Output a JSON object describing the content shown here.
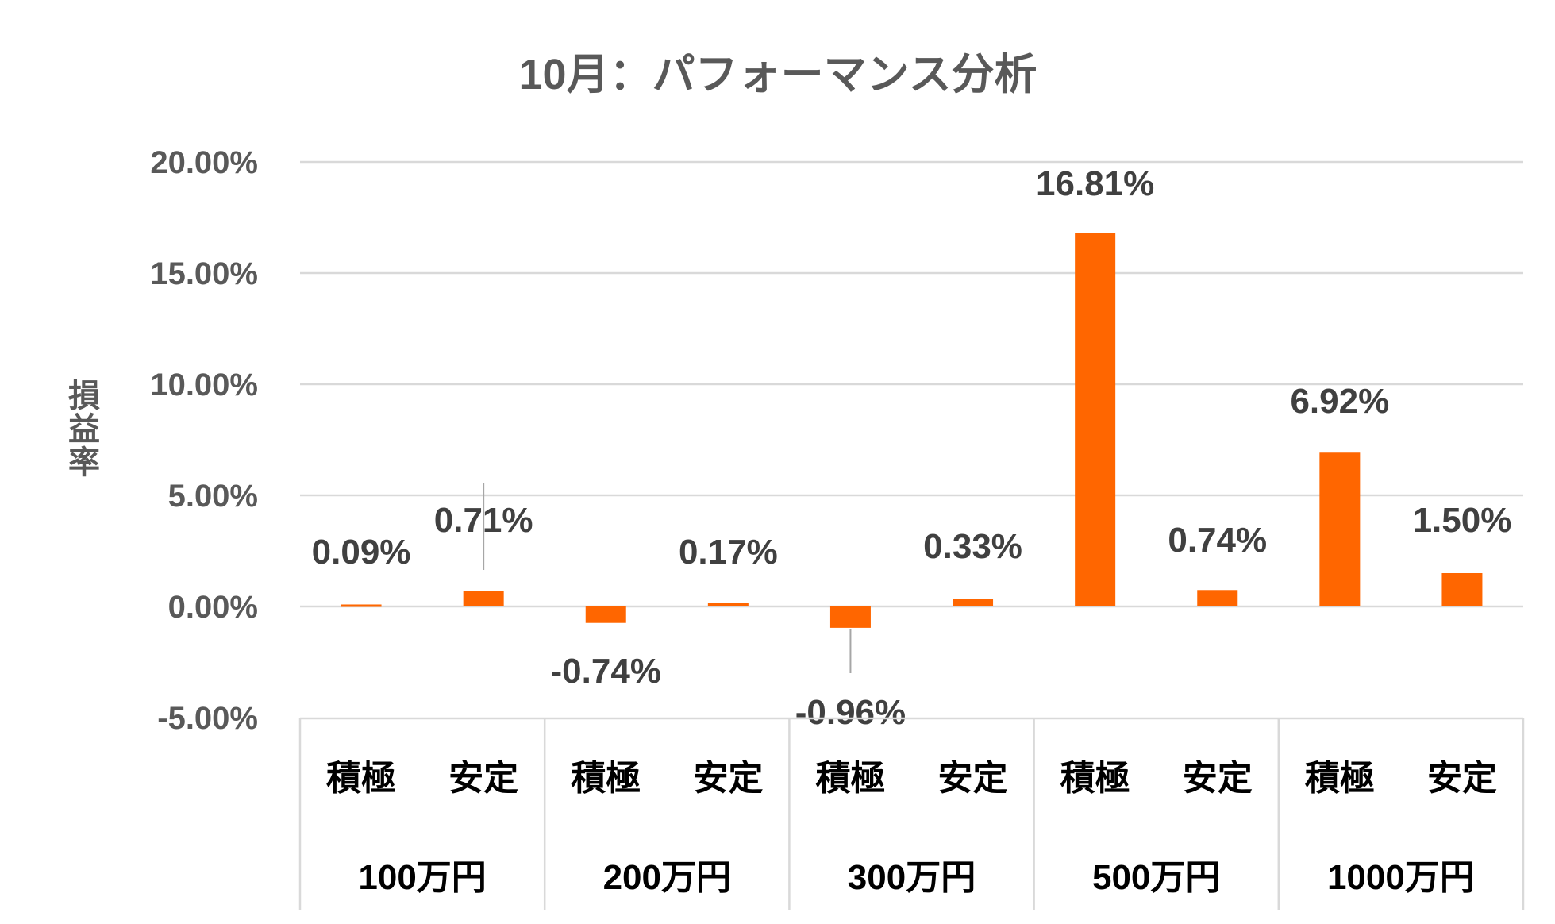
{
  "chart_data": {
    "type": "bar",
    "title": "10月：パフォーマンス分析",
    "xlabel": "",
    "ylabel": "損益率",
    "ylim": [
      -5,
      20
    ],
    "yticks": [
      "20.00%",
      "15.00%",
      "10.00%",
      "5.00%",
      "0.00%",
      "-5.00%"
    ],
    "ytick_values": [
      20,
      15,
      10,
      5,
      0,
      -5
    ],
    "grid": true,
    "legend": null,
    "bar_color": "#FF6600",
    "groups": [
      "100万円",
      "200万円",
      "300万円",
      "500万円",
      "1000万円"
    ],
    "subcategories": [
      "積極",
      "安定"
    ],
    "categories": [
      "100万円 積極",
      "100万円 安定",
      "200万円 積極",
      "200万円 安定",
      "300万円 積極",
      "300万円 安定",
      "500万円 積極",
      "500万円 安定",
      "1000万円 積極",
      "1000万円 安定"
    ],
    "values": [
      0.09,
      0.71,
      -0.74,
      0.17,
      -0.96,
      0.33,
      16.81,
      0.74,
      6.92,
      1.5
    ],
    "data_labels": [
      "0.09%",
      "0.71%",
      "-0.74%",
      "0.17%",
      "-0.96%",
      "0.33%",
      "16.81%",
      "0.74%",
      "6.92%",
      "1.50%"
    ],
    "series": [
      {
        "name": "損益率",
        "values": [
          0.09,
          0.71,
          -0.74,
          0.17,
          -0.96,
          0.33,
          16.81,
          0.74,
          6.92,
          1.5
        ]
      }
    ]
  }
}
